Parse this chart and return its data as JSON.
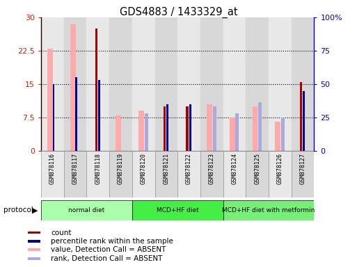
{
  "title": "GDS4883 / 1433329_at",
  "samples": [
    "GSM878116",
    "GSM878117",
    "GSM878118",
    "GSM878119",
    "GSM878120",
    "GSM878121",
    "GSM878122",
    "GSM878123",
    "GSM878124",
    "GSM878125",
    "GSM878126",
    "GSM878127"
  ],
  "count": [
    null,
    null,
    27.5,
    null,
    null,
    10.0,
    10.0,
    null,
    null,
    null,
    null,
    15.5
  ],
  "percentile_rank": [
    15.0,
    16.5,
    16.0,
    null,
    null,
    10.5,
    10.5,
    null,
    null,
    null,
    null,
    13.5
  ],
  "value_absent": [
    23.0,
    28.5,
    null,
    8.0,
    9.0,
    null,
    null,
    10.5,
    7.5,
    10.0,
    6.5,
    null
  ],
  "rank_absent": [
    null,
    null,
    null,
    null,
    8.5,
    null,
    null,
    10.0,
    8.5,
    11.0,
    7.5,
    null
  ],
  "ylim_left": [
    0,
    30
  ],
  "ylim_right": [
    0,
    100
  ],
  "yticks_left": [
    0,
    7.5,
    15,
    22.5,
    30
  ],
  "yticks_right": [
    0,
    25,
    50,
    75,
    100
  ],
  "ytick_labels_right": [
    "0",
    "25",
    "50",
    "75",
    "100%"
  ],
  "protocols": [
    {
      "label": "normal diet",
      "start": 0,
      "end": 4,
      "color": "#aaffaa"
    },
    {
      "label": "MCD+HF diet",
      "start": 4,
      "end": 8,
      "color": "#44ee44"
    },
    {
      "label": "MCD+HF diet with metformin",
      "start": 8,
      "end": 12,
      "color": "#77ee77"
    }
  ],
  "bar_width": 0.28,
  "bar_colors": {
    "count": "#aa0000",
    "percentile_rank": "#000099",
    "value_absent": "#ffaaaa",
    "rank_absent": "#aaaadd"
  },
  "legend": [
    {
      "color": "#aa0000",
      "label": "count"
    },
    {
      "color": "#000099",
      "label": "percentile rank within the sample"
    },
    {
      "color": "#ffaaaa",
      "label": "value, Detection Call = ABSENT"
    },
    {
      "color": "#aaaadd",
      "label": "rank, Detection Call = ABSENT"
    }
  ],
  "col_bg_even": "#e8e8e8",
  "col_bg_odd": "#d8d8d8"
}
